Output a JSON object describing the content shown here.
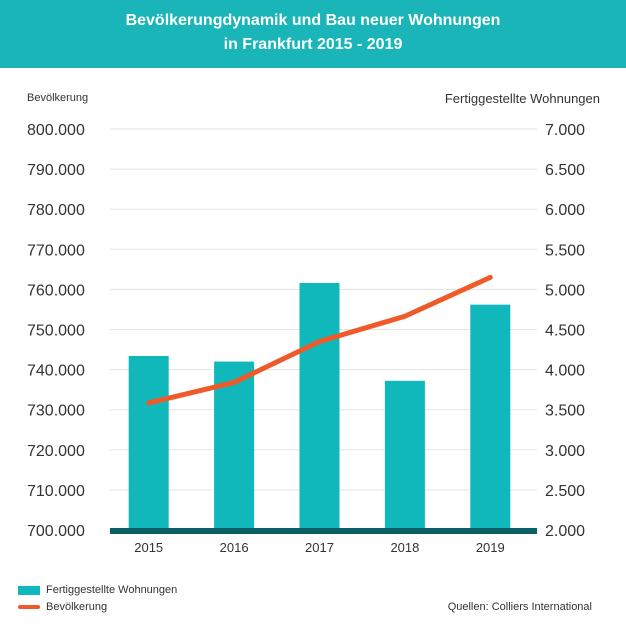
{
  "title": {
    "line1": "Bevölkerungdynamik und Bau neuer Wohnungen",
    "line2": "in Frankfurt 2015 - 2019"
  },
  "colors": {
    "header": "#1ab5b8",
    "bars": "#10b8bb",
    "line": "#ef5a28",
    "baseline": "#0d5f66"
  },
  "chart_data": {
    "type": "bar",
    "categories": [
      "2015",
      "2016",
      "2017",
      "2018",
      "2019"
    ],
    "y_left": {
      "label": "Bevölkerung",
      "ylim": [
        700000,
        800000
      ],
      "ticks": [
        "700.000",
        "710.000",
        "720.000",
        "730.000",
        "740.000",
        "750.000",
        "760.000",
        "770.000",
        "780.000",
        "790.000",
        "800.000"
      ]
    },
    "y_right": {
      "label": "Fertiggestellte Wohnungen",
      "ylim": [
        2000,
        7000
      ],
      "ticks": [
        "2.000",
        "2.500",
        "3.000",
        "3.500",
        "4.000",
        "4.500",
        "5.000",
        "5.500",
        "6.000",
        "6.500",
        "7.000"
      ]
    },
    "series": [
      {
        "name": "Fertiggestellte Wohnungen",
        "type": "bar",
        "axis": "right",
        "values": [
          4170,
          4100,
          5080,
          3860,
          4810
        ]
      },
      {
        "name": "Bevölkerung",
        "type": "line",
        "axis": "left",
        "values": [
          731700,
          736800,
          747000,
          753300,
          763000
        ]
      }
    ],
    "grid": true,
    "legend": "bottom-left"
  },
  "legend": {
    "bars": "Fertiggestellte Wohnungen",
    "line": "Bevölkerung"
  },
  "source": "Quellen: Colliers International"
}
